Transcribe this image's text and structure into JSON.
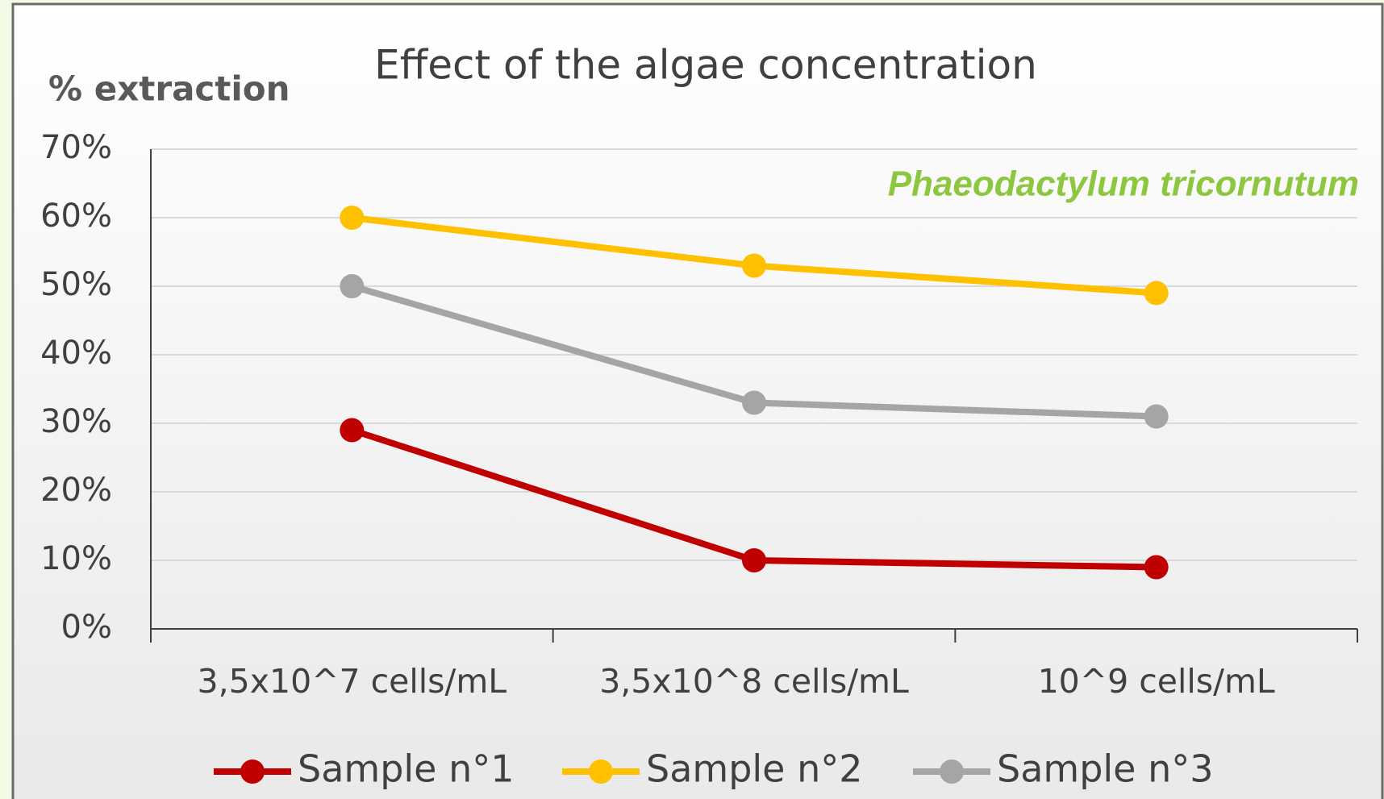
{
  "chart_data": {
    "type": "line",
    "title": "Effect of the algae concentration",
    "y_label": "% extraction",
    "annotation": "Phaeodactylum tricornutum",
    "categories": [
      "3,5x10^7 cells/mL",
      "3,5x10^8 cells/mL",
      "10^9 cells/mL"
    ],
    "series": [
      {
        "name": "Sample n°1",
        "color": "#c00000",
        "values": [
          29,
          10,
          9
        ]
      },
      {
        "name": "Sample n°2",
        "color": "#ffc000",
        "values": [
          60,
          53,
          49
        ]
      },
      {
        "name": "Sample n°3",
        "color": "#a5a5a5",
        "values": [
          50,
          33,
          31
        ]
      }
    ],
    "ylim": [
      0,
      70
    ],
    "yticks": [
      {
        "value": 0,
        "label": "0%"
      },
      {
        "value": 10,
        "label": "10%"
      },
      {
        "value": 20,
        "label": "20%"
      },
      {
        "value": 30,
        "label": "30%"
      },
      {
        "value": 40,
        "label": "40%"
      },
      {
        "value": 50,
        "label": "50%"
      },
      {
        "value": 60,
        "label": "60%"
      },
      {
        "value": 70,
        "label": "70%"
      }
    ],
    "grid": true,
    "legend": "bottom"
  }
}
